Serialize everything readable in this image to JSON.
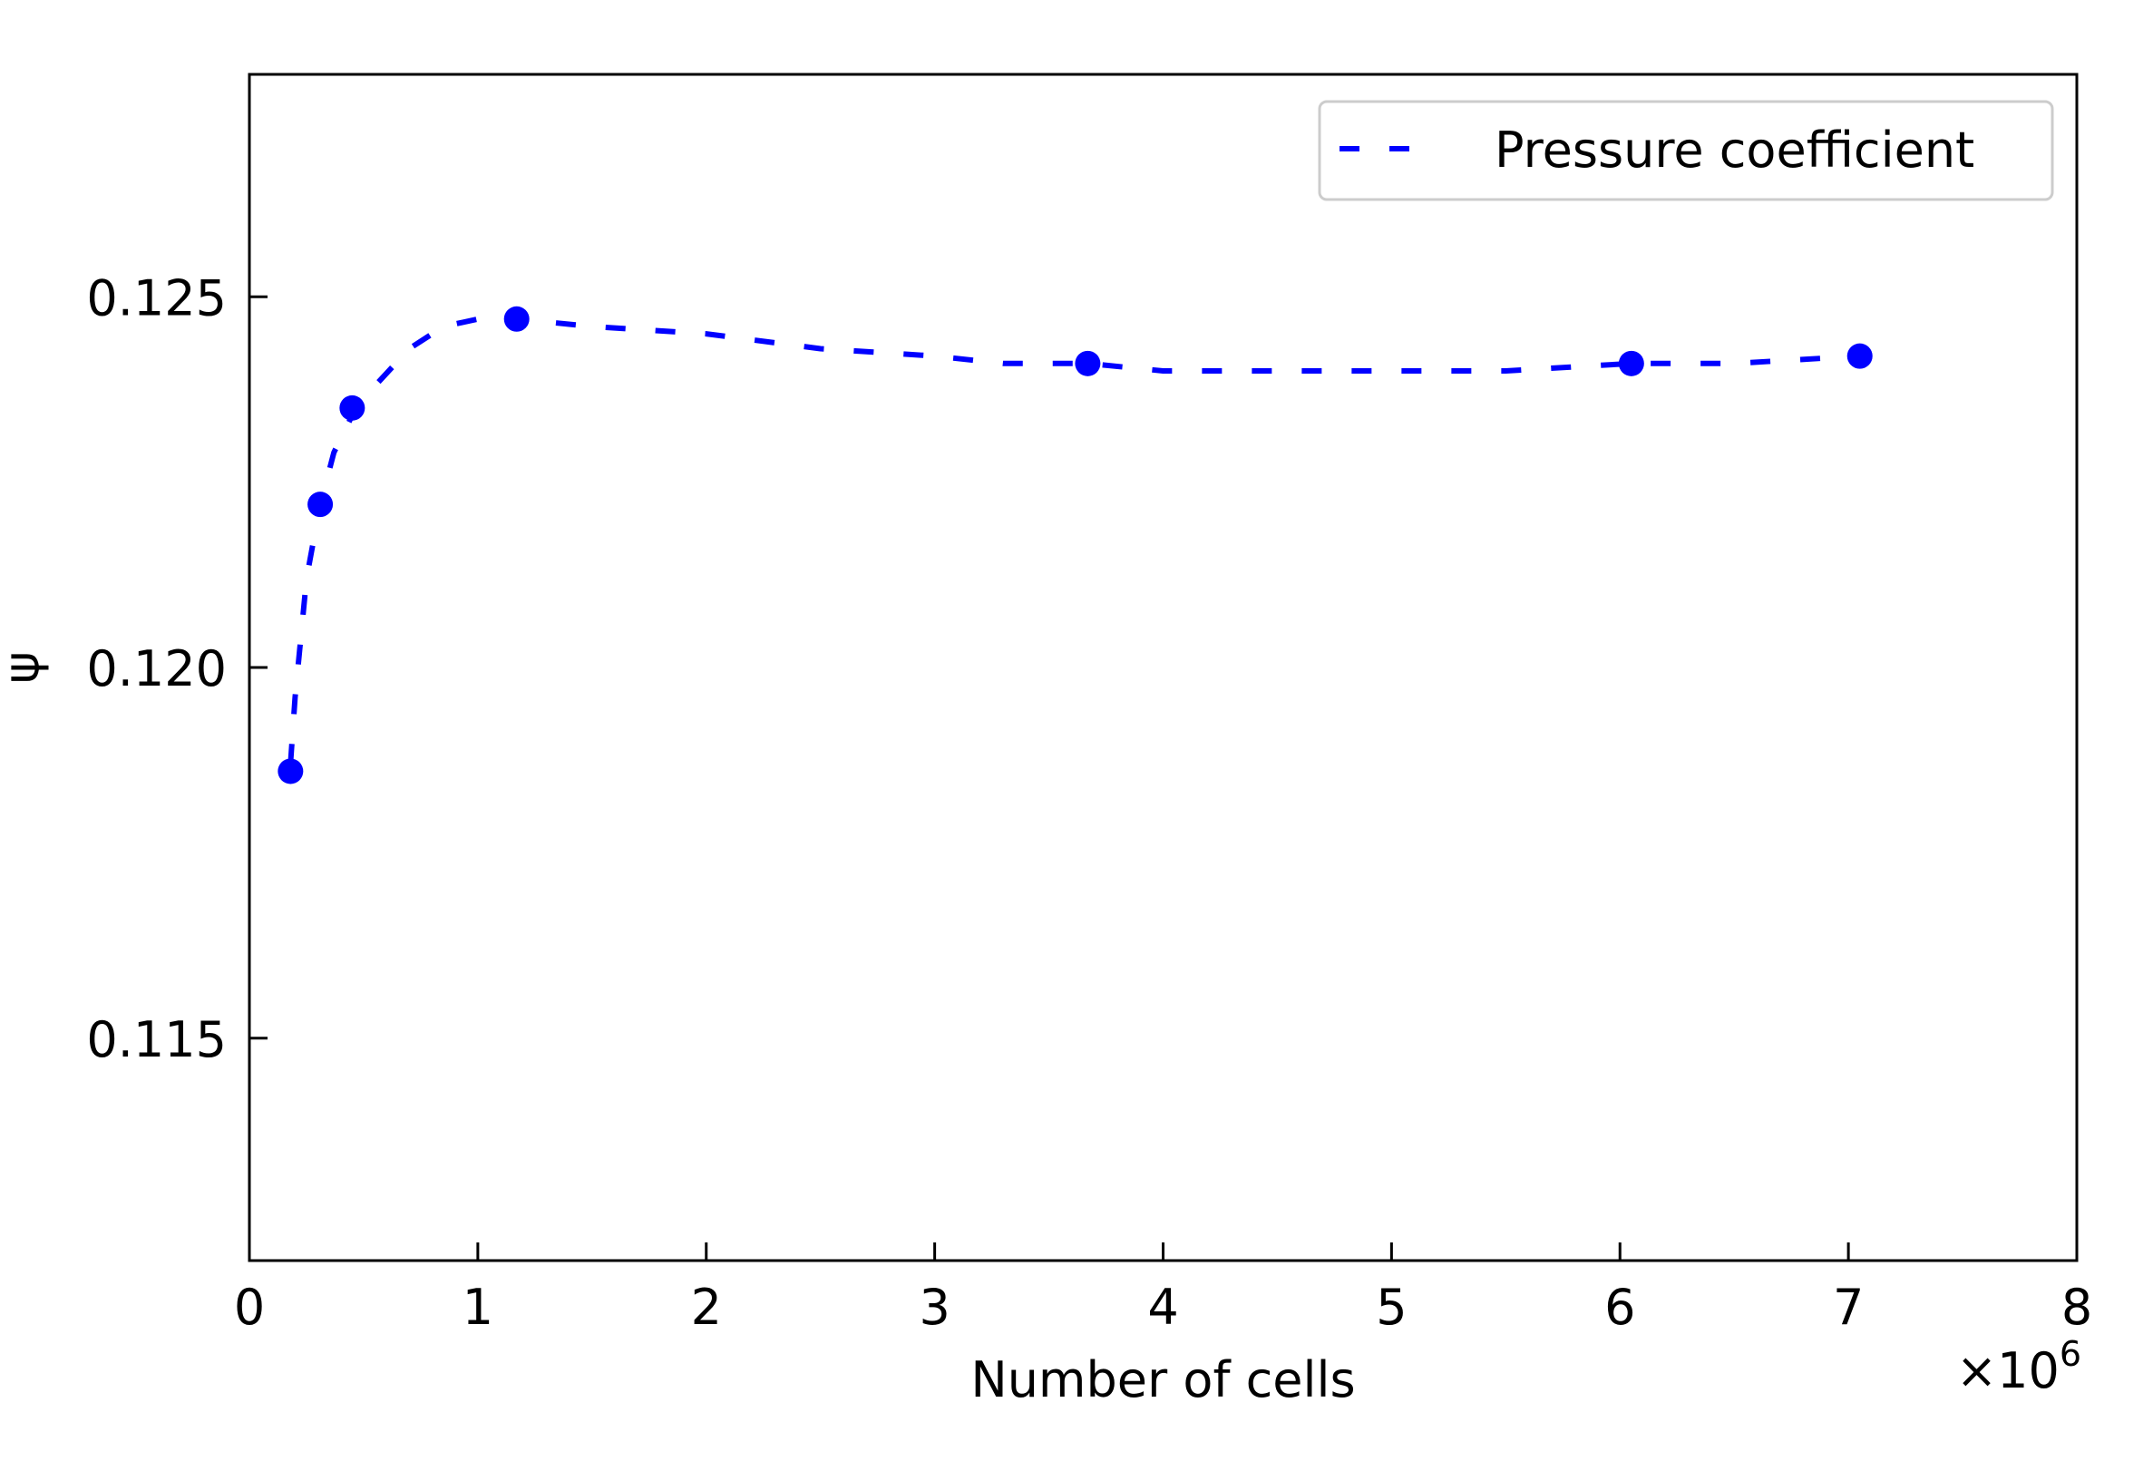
{
  "chart_data": {
    "type": "line",
    "title": "",
    "xlabel": "Number of cells",
    "ylabel": "ψ",
    "x_offset_text": "×10",
    "x_offset_exponent": "6",
    "xlim": [
      0,
      8
    ],
    "ylim": [
      0.112,
      0.128
    ],
    "x_scale": 1000000,
    "xticks": [
      0,
      1,
      2,
      3,
      4,
      5,
      6,
      7,
      8
    ],
    "xtick_labels": [
      "0",
      "1",
      "2",
      "3",
      "4",
      "5",
      "6",
      "7",
      "8"
    ],
    "yticks": [
      0.115,
      0.12,
      0.125
    ],
    "ytick_labels": [
      "0.115",
      "0.120",
      "0.125"
    ],
    "grid": false,
    "legend_position": "top-right",
    "series": [
      {
        "name": "Pressure coefficient",
        "color": "#0000ff",
        "line_style": "dotted",
        "marker": "circle",
        "x": [
          0.18,
          0.31,
          0.45,
          1.17,
          3.67,
          6.05,
          7.05
        ],
        "y": [
          0.1186,
          0.1222,
          0.1235,
          0.1247,
          0.1241,
          0.1241,
          0.1242
        ],
        "curve_x": [
          0.18,
          0.2,
          0.25,
          0.31,
          0.37,
          0.45,
          0.55,
          0.7,
          0.85,
          1.0,
          1.17,
          1.5,
          2.0,
          2.5,
          3.0,
          3.3,
          3.67,
          4.0,
          4.5,
          5.0,
          5.5,
          6.05,
          6.5,
          7.05
        ],
        "curve_y": [
          0.1187,
          0.1196,
          0.1212,
          0.1222,
          0.1229,
          0.1234,
          0.1238,
          0.1243,
          0.1246,
          0.1247,
          0.1247,
          0.1246,
          0.1245,
          0.1243,
          0.1242,
          0.1241,
          0.1241,
          0.124,
          0.124,
          0.124,
          0.124,
          0.1241,
          0.1241,
          0.1242
        ]
      }
    ]
  }
}
